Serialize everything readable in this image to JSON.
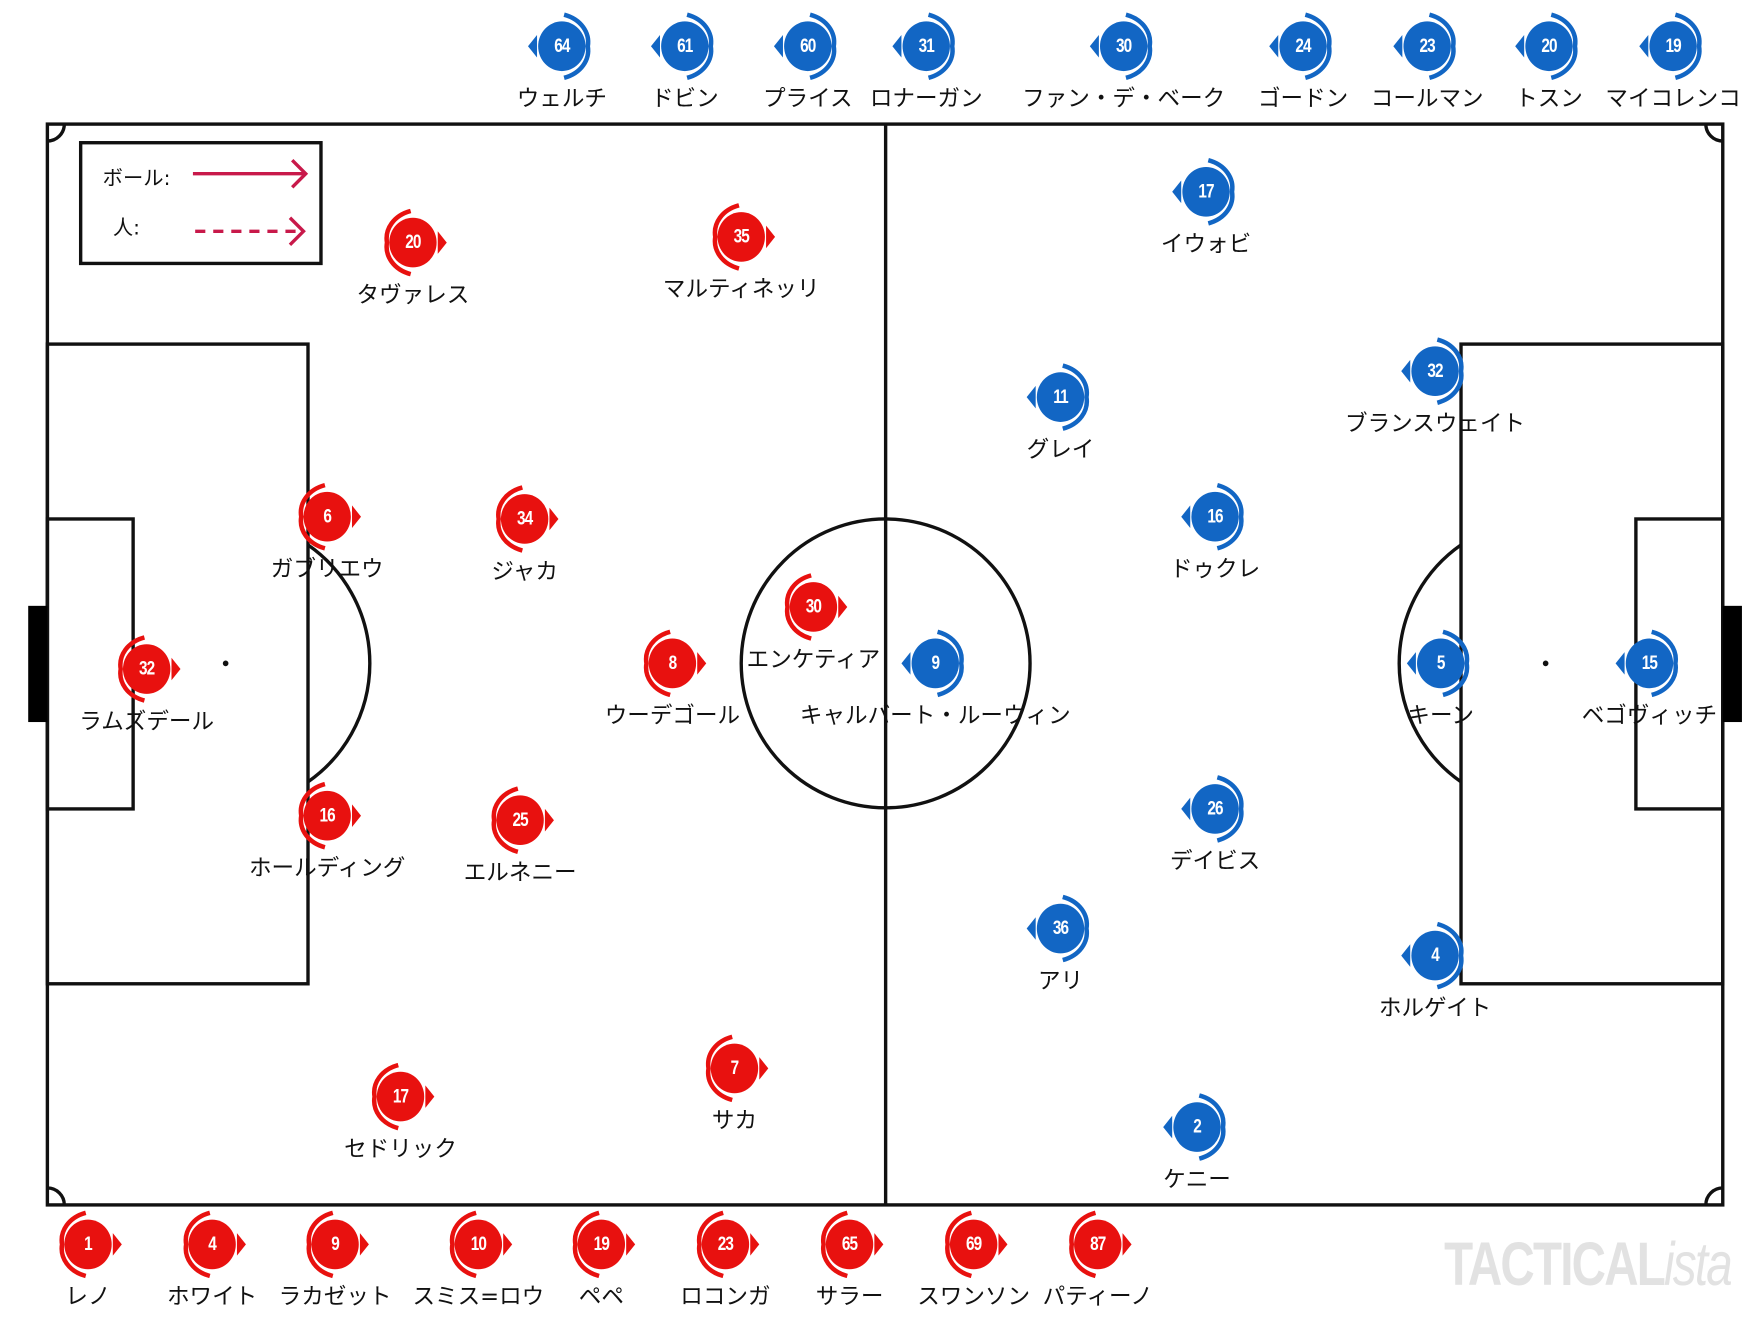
{
  "legend": {
    "ball_label": "ボール:",
    "person_label": "人:",
    "arrow_color": "#c8194a"
  },
  "colors": {
    "home": "#e8110f",
    "away": "#1266c4"
  },
  "watermark": {
    "main": "TACTICAL",
    "suffix": "ista"
  },
  "home_team": {
    "starters": [
      {
        "number": "20",
        "name": "タヴァレス"
      },
      {
        "number": "35",
        "name": "マルティネッリ"
      },
      {
        "number": "6",
        "name": "ガブリエウ"
      },
      {
        "number": "34",
        "name": "ジャカ"
      },
      {
        "number": "32",
        "name": "ラムズデール"
      },
      {
        "number": "30",
        "name": "エンケティア"
      },
      {
        "number": "8",
        "name": "ウーデゴール"
      },
      {
        "number": "16",
        "name": "ホールディング"
      },
      {
        "number": "25",
        "name": "エルネニー"
      },
      {
        "number": "17",
        "name": "セドリック"
      },
      {
        "number": "7",
        "name": "サカ"
      }
    ],
    "substitutes": [
      {
        "number": "1",
        "name": "レノ"
      },
      {
        "number": "4",
        "name": "ホワイト"
      },
      {
        "number": "9",
        "name": "ラカゼット"
      },
      {
        "number": "10",
        "name": "スミス=ロウ"
      },
      {
        "number": "19",
        "name": "ペペ"
      },
      {
        "number": "23",
        "name": "ロコンガ"
      },
      {
        "number": "65",
        "name": "サラー"
      },
      {
        "number": "69",
        "name": "スワンソン"
      },
      {
        "number": "87",
        "name": "パティーノ"
      }
    ]
  },
  "away_team": {
    "starters": [
      {
        "number": "17",
        "name": "イウォビ"
      },
      {
        "number": "11",
        "name": "グレイ"
      },
      {
        "number": "32",
        "name": "ブランスウェイト"
      },
      {
        "number": "16",
        "name": "ドゥクレ"
      },
      {
        "number": "9",
        "name": "キャルバート・ルーウィン"
      },
      {
        "number": "5",
        "name": "キーン"
      },
      {
        "number": "15",
        "name": "ベゴヴィッチ"
      },
      {
        "number": "26",
        "name": "デイビス"
      },
      {
        "number": "36",
        "name": "アリ"
      },
      {
        "number": "4",
        "name": "ホルゲイト"
      },
      {
        "number": "2",
        "name": "ケニー"
      }
    ],
    "substitutes": [
      {
        "number": "64",
        "name": "ウェルチ"
      },
      {
        "number": "61",
        "name": "ドビン"
      },
      {
        "number": "60",
        "name": "プライス"
      },
      {
        "number": "31",
        "name": "ロナーガン"
      },
      {
        "number": "30",
        "name": "ファン・デ・ベーク"
      },
      {
        "number": "24",
        "name": "ゴードン"
      },
      {
        "number": "23",
        "name": "コールマン"
      },
      {
        "number": "20",
        "name": "トスン"
      },
      {
        "number": "19",
        "name": "マイコレンコ"
      }
    ]
  }
}
